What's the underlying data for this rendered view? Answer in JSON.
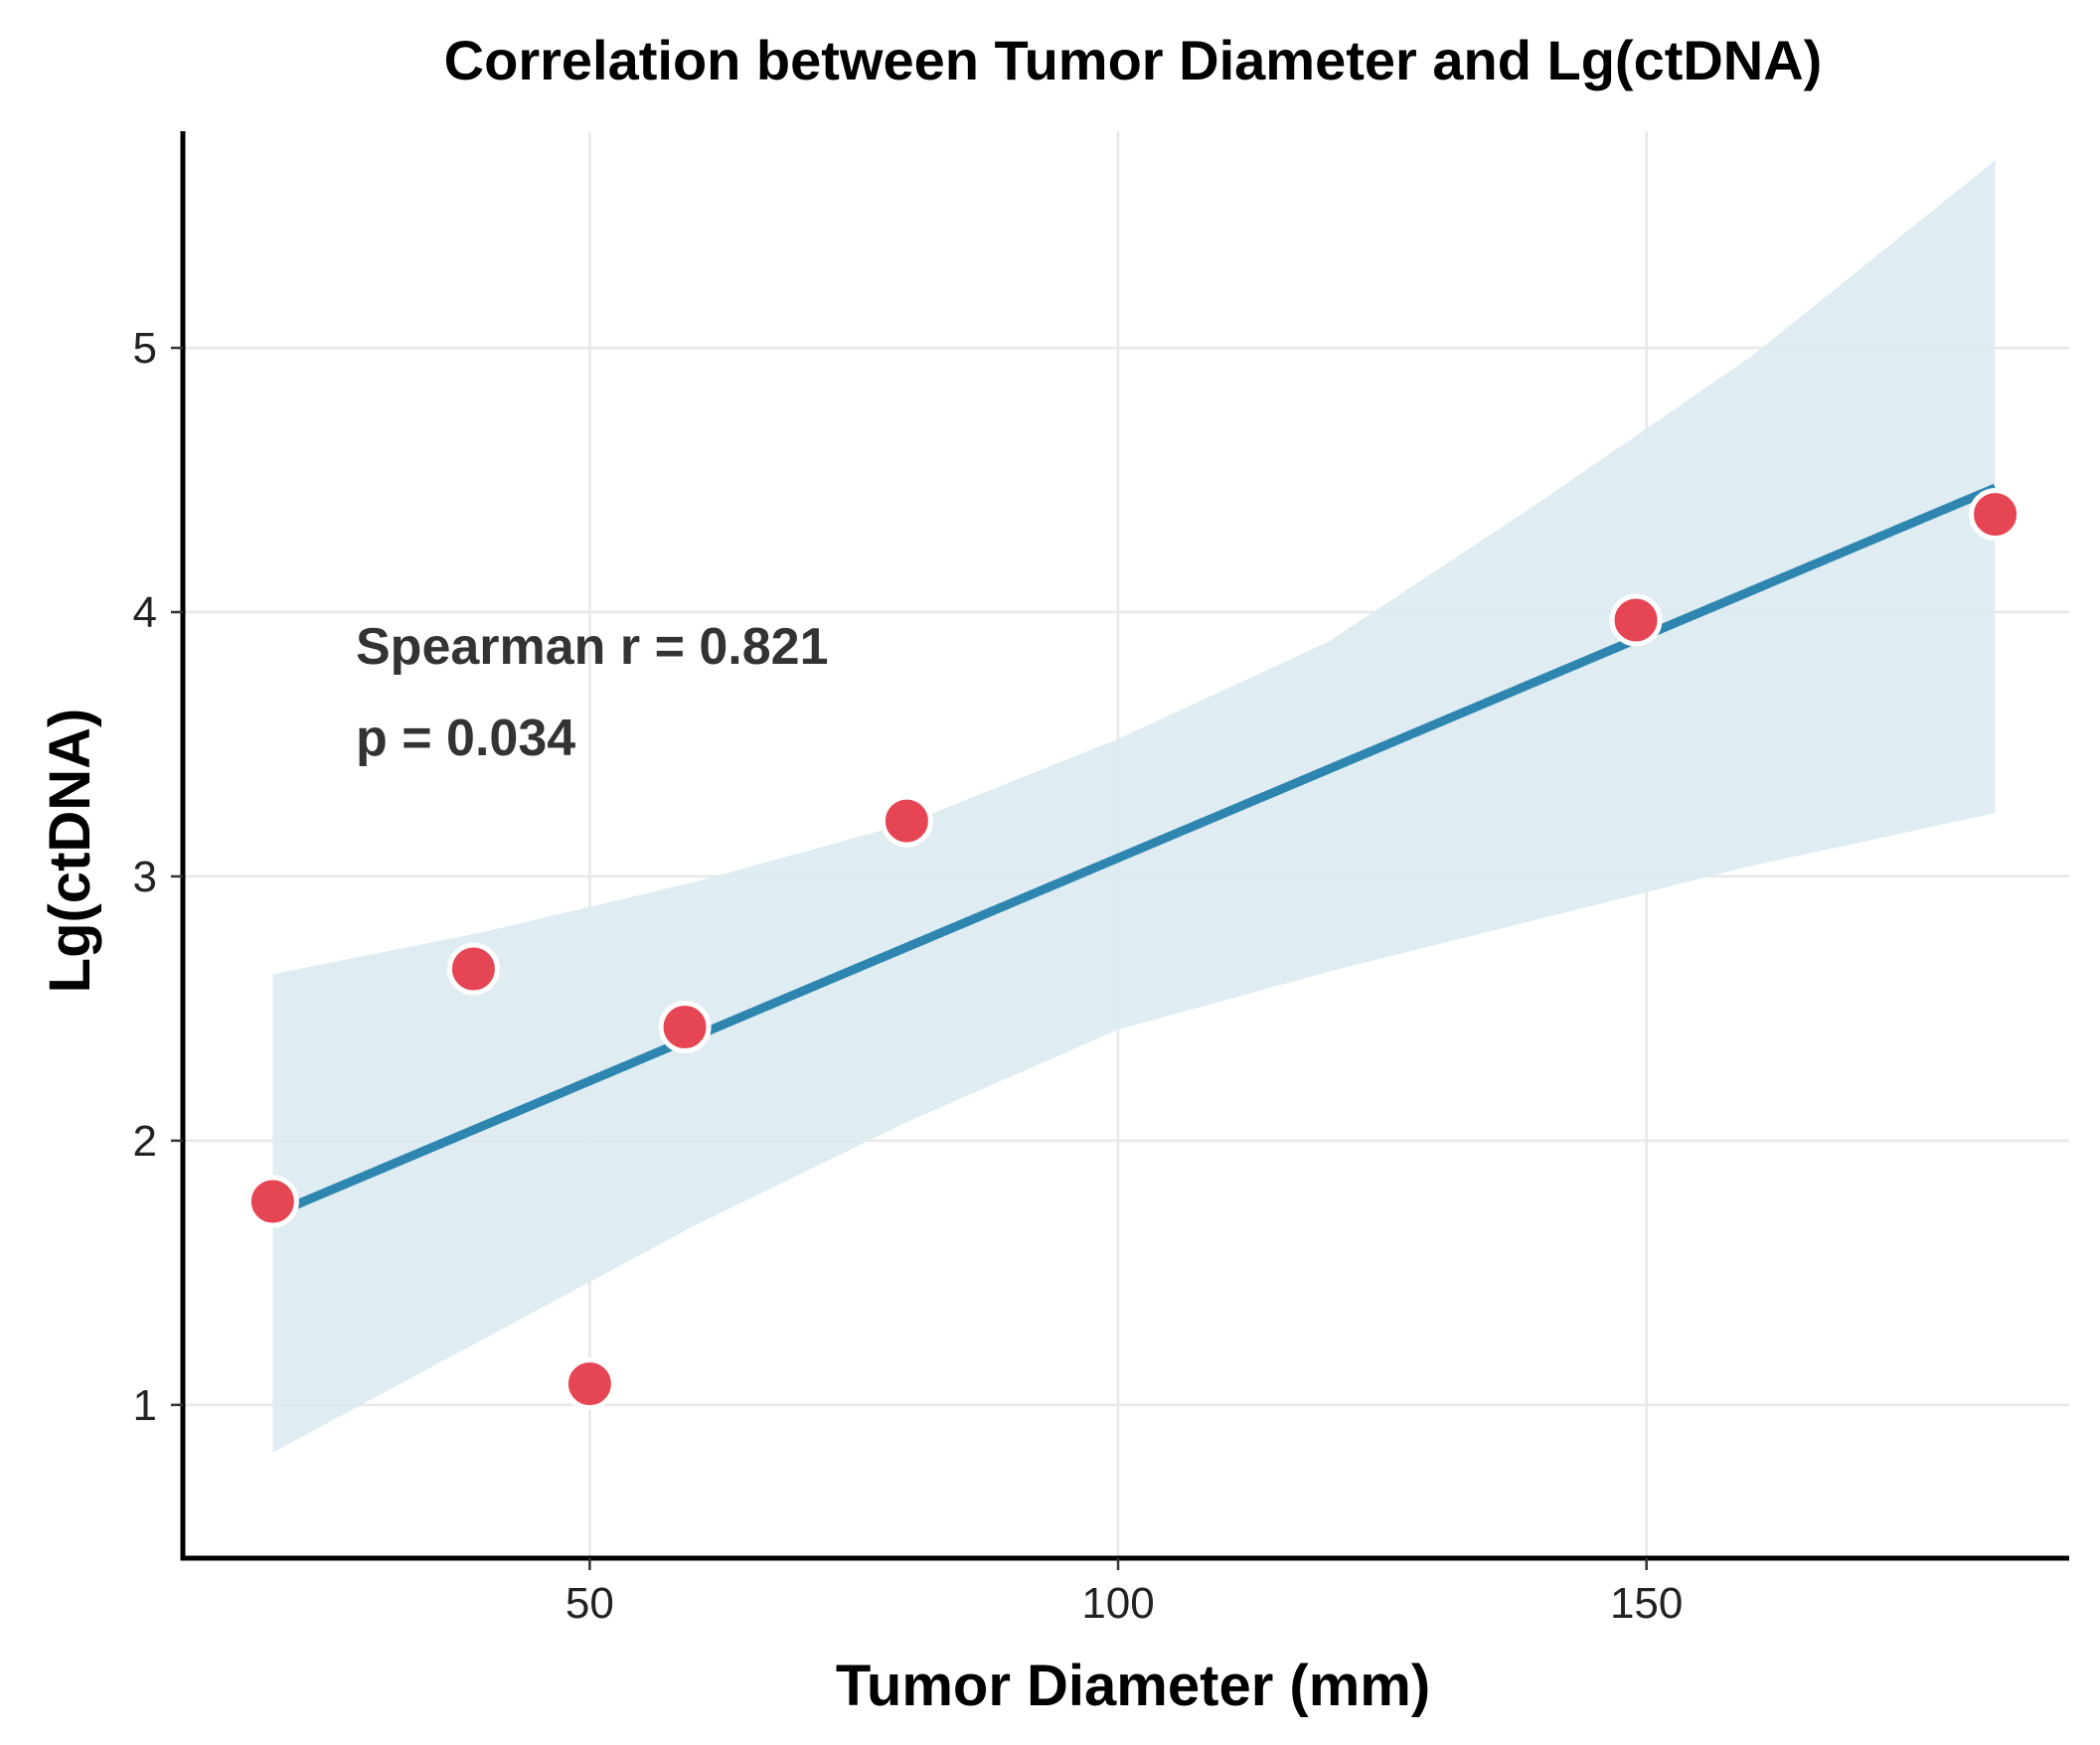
{
  "chart_data": {
    "type": "scatter",
    "title": "Correlation between Tumor Diameter and Lg(ctDNA)",
    "xlabel": "Tumor Diameter (mm)",
    "ylabel": "Lg(ctDNA)",
    "xlim": [
      11.5,
      190
    ],
    "ylim": [
      0.42,
      5.82
    ],
    "x_ticks": [
      {
        "value": 50,
        "label": "50"
      },
      {
        "value": 100,
        "label": "100"
      },
      {
        "value": 150,
        "label": "150"
      }
    ],
    "y_ticks": [
      {
        "value": 1,
        "label": "1"
      },
      {
        "value": 2,
        "label": "2"
      },
      {
        "value": 3,
        "label": "3"
      },
      {
        "value": 4,
        "label": "4"
      },
      {
        "value": 5,
        "label": "5"
      }
    ],
    "grid": true,
    "points": [
      {
        "x": 20,
        "y": 1.77
      },
      {
        "x": 39,
        "y": 2.65
      },
      {
        "x": 50,
        "y": 1.08
      },
      {
        "x": 59,
        "y": 2.43
      },
      {
        "x": 80,
        "y": 3.21
      },
      {
        "x": 149,
        "y": 3.97
      },
      {
        "x": 183,
        "y": 4.37
      }
    ],
    "fit_line": [
      {
        "x": 20,
        "y": 1.72
      },
      {
        "x": 183,
        "y": 4.47
      }
    ],
    "confidence_band": {
      "x": [
        20,
        40,
        60,
        80,
        100,
        120,
        140,
        160,
        183
      ],
      "lower": [
        0.82,
        1.25,
        1.68,
        2.07,
        2.42,
        2.64,
        2.84,
        3.04,
        3.24
      ],
      "upper": [
        2.63,
        2.79,
        2.98,
        3.2,
        3.52,
        3.89,
        4.42,
        4.97,
        5.71
      ]
    },
    "annotations": [
      {
        "text": "Spearman r = 0.821"
      },
      {
        "text": "p = 0.034"
      }
    ],
    "colors": {
      "point": "#e64553",
      "point_outline": "#ffffff",
      "line": "#2e86b0",
      "band": "#dcebf2"
    }
  }
}
